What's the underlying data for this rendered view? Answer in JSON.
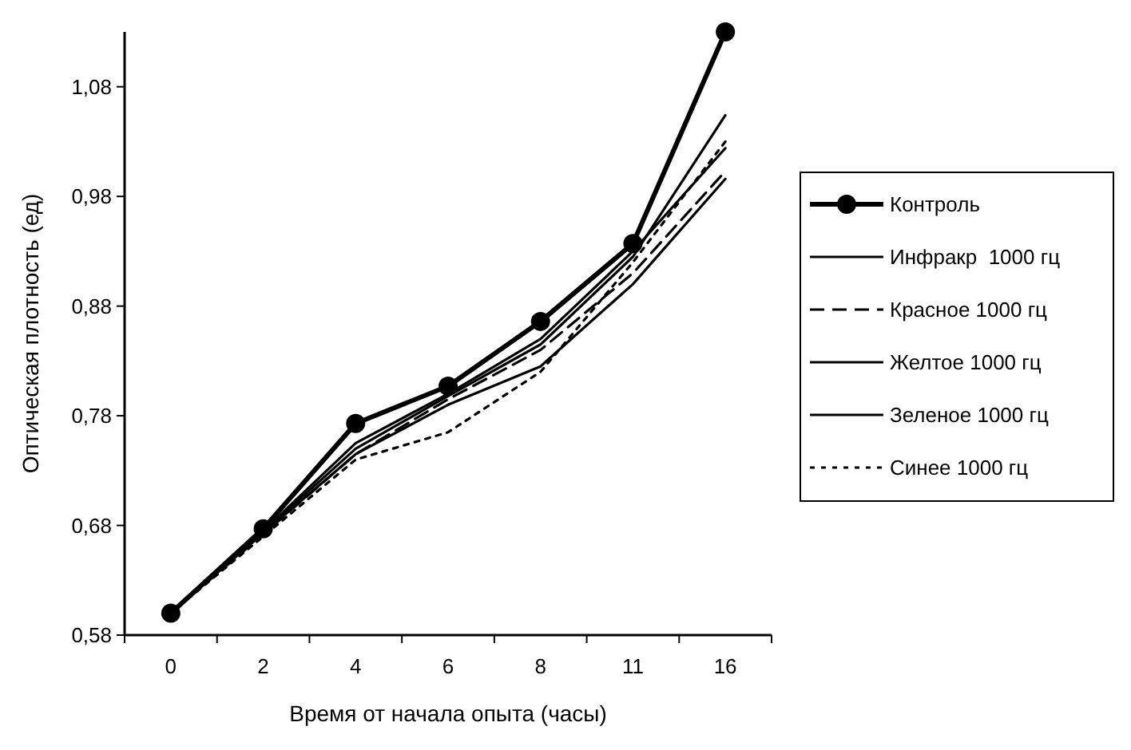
{
  "chart_data": {
    "type": "line",
    "xlabel": "Время от начала опыта (часы)",
    "ylabel": "Оптическая плотность (ед)",
    "categories": [
      "0",
      "2",
      "4",
      "6",
      "8",
      "11",
      "16"
    ],
    "ylim": [
      0.58,
      1.13
    ],
    "yticks": [
      {
        "value": 0.58,
        "label": "0,58"
      },
      {
        "value": 0.68,
        "label": "0,68"
      },
      {
        "value": 0.78,
        "label": "0,78"
      },
      {
        "value": 0.88,
        "label": "0,88"
      },
      {
        "value": 0.98,
        "label": "0,98"
      },
      {
        "value": 1.08,
        "label": "1,08"
      }
    ],
    "grid": false,
    "legend": "right",
    "series": [
      {
        "name": "Контроль",
        "color": "#000000",
        "marker": "circle",
        "line_style": "solid",
        "values": [
          0.6,
          0.677,
          0.773,
          0.807,
          0.866,
          0.937,
          1.13
        ]
      },
      {
        "name": "Инфракр  1000 гц",
        "color": "#000000",
        "marker": "none",
        "line_style": "solid",
        "values": [
          0.6,
          0.675,
          0.755,
          0.8,
          0.85,
          0.93,
          1.024
        ]
      },
      {
        "name": "Красное 1000 гц",
        "color": "#000000",
        "marker": "none",
        "line_style": "dashed",
        "values": [
          0.6,
          0.672,
          0.745,
          0.795,
          0.84,
          0.91,
          1.003
        ]
      },
      {
        "name": "Желтое 1000 гц",
        "color": "#000000",
        "marker": "none",
        "line_style": "solid",
        "values": [
          0.6,
          0.674,
          0.75,
          0.798,
          0.845,
          0.925,
          1.054
        ]
      },
      {
        "name": "Зеленое 1000 гц",
        "color": "#000000",
        "marker": "none",
        "line_style": "solid",
        "values": [
          0.6,
          0.673,
          0.745,
          0.79,
          0.825,
          0.9,
          0.996
        ]
      },
      {
        "name": "Синее 1000 гц",
        "color": "#000000",
        "marker": "none",
        "line_style": "dotted",
        "values": [
          0.6,
          0.67,
          0.74,
          0.765,
          0.82,
          0.92,
          1.03
        ]
      }
    ]
  }
}
